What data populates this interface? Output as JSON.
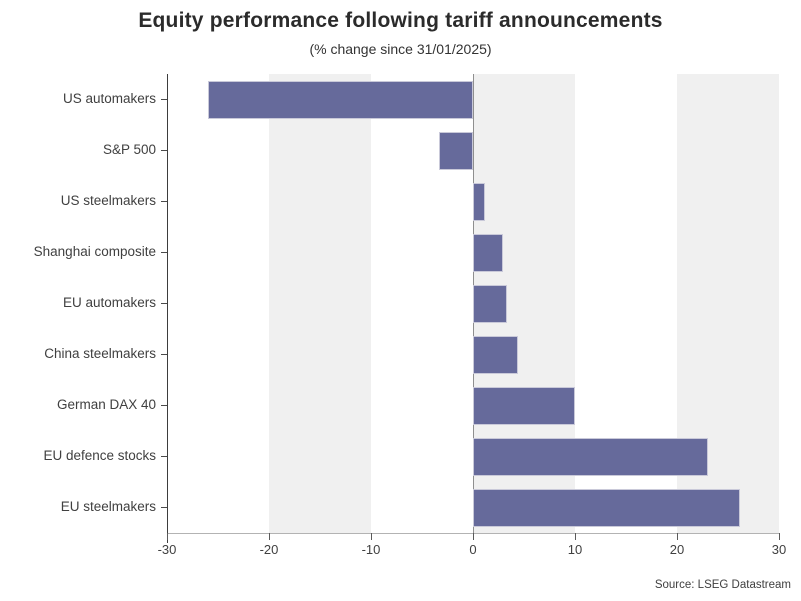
{
  "chart_data": {
    "type": "bar",
    "orientation": "horizontal",
    "title": "Equity performance following tariff announcements",
    "subtitle": "(% change since 31/01/2025)",
    "source": "Source: LSEG Datastream",
    "categories": [
      "US automakers",
      "S&P 500",
      "US steelmakers",
      "Shanghai composite",
      "EU automakers",
      "China steelmakers",
      "German DAX 40",
      "EU defence stocks",
      "EU steelmakers"
    ],
    "values": [
      -26.0,
      -3.3,
      1.2,
      2.9,
      3.3,
      4.4,
      10.0,
      23.0,
      26.2
    ],
    "xlabel": "",
    "ylabel": "",
    "xlim": [
      -30,
      30
    ],
    "x_ticks": [
      "-30",
      "-20",
      "-10",
      "0",
      "10",
      "20",
      "30"
    ],
    "x_tick_values": [
      -30,
      -20,
      -10,
      0,
      10,
      20,
      30
    ],
    "bands": [
      [
        -20,
        -10
      ],
      [
        0,
        10
      ],
      [
        20,
        30
      ]
    ],
    "legend": "none",
    "grid": "vertical-shaded-bands",
    "colors": {
      "bar": "#666a9b",
      "bar_edge": "#c9c9d9",
      "band": "#f0f0f0",
      "zero_line": "#8f8f8f",
      "axis_dark": "#3d3d3d",
      "axis_light": "#b3b3b3",
      "text": "#404040"
    }
  }
}
